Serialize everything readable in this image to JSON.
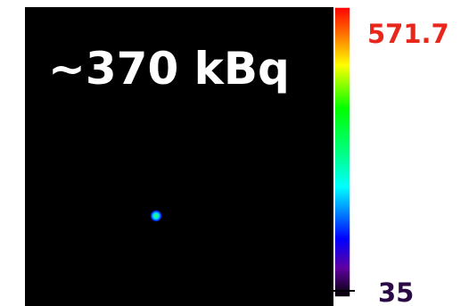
{
  "image": {
    "label": "~370 kBq"
  },
  "colorbar": {
    "max": 571.7,
    "min": 35
  }
}
